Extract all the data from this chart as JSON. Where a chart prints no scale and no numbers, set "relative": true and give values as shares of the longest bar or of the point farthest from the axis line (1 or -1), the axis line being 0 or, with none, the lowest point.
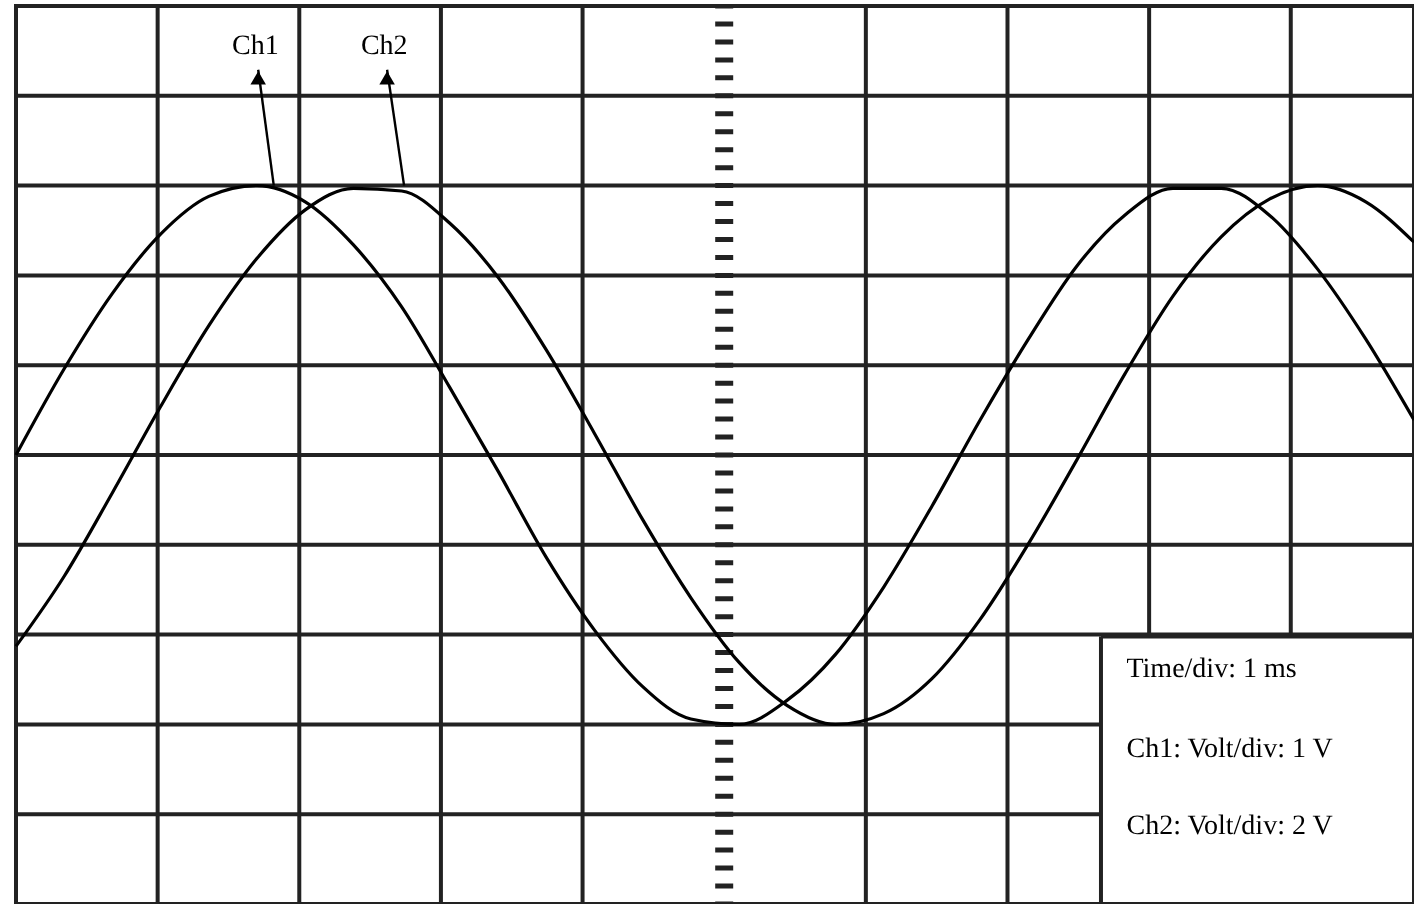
{
  "chart_data": {
    "type": "line",
    "categories": [
      null,
      null,
      null,
      null,
      null,
      null,
      null,
      null,
      null,
      null,
      null,
      null,
      null,
      null,
      null,
      null,
      null,
      null,
      null,
      null,
      null,
      null,
      null,
      null,
      null,
      null,
      null,
      null,
      null,
      null
    ],
    "relative": true,
    "grid": true,
    "series": [
      {
        "name": "Ch1",
        "color": "#000000",
        "values": [
          0.0,
          0.32,
          0.6,
          0.82,
          0.96,
          1.0,
          0.94,
          0.78,
          0.55,
          0.25,
          -0.06,
          -0.38,
          -0.65,
          -0.86,
          -0.98,
          -1.0,
          -0.91,
          -0.74,
          -0.49,
          -0.19,
          0.13,
          0.43,
          0.7,
          0.89,
          0.99,
          0.99,
          0.89,
          0.69,
          0.43,
          0.13
        ]
      },
      {
        "name": "Ch2",
        "color": "#000000",
        "values": [
          -0.71,
          -0.45,
          -0.14,
          0.18,
          0.48,
          0.73,
          0.91,
          0.99,
          0.98,
          0.86,
          0.66,
          0.39,
          0.08,
          -0.24,
          -0.53,
          -0.77,
          -0.93,
          -1.0,
          -0.96,
          -0.83,
          -0.61,
          -0.33,
          -0.02,
          0.3,
          0.59,
          0.81,
          0.95,
          1.0,
          0.94,
          0.79
        ]
      }
    ],
    "annotations": [
      "Time/div: 1 ms",
      "Ch1: Volt/div: 1 V",
      "Ch2: Volt/div: 2 V"
    ]
  }
}
